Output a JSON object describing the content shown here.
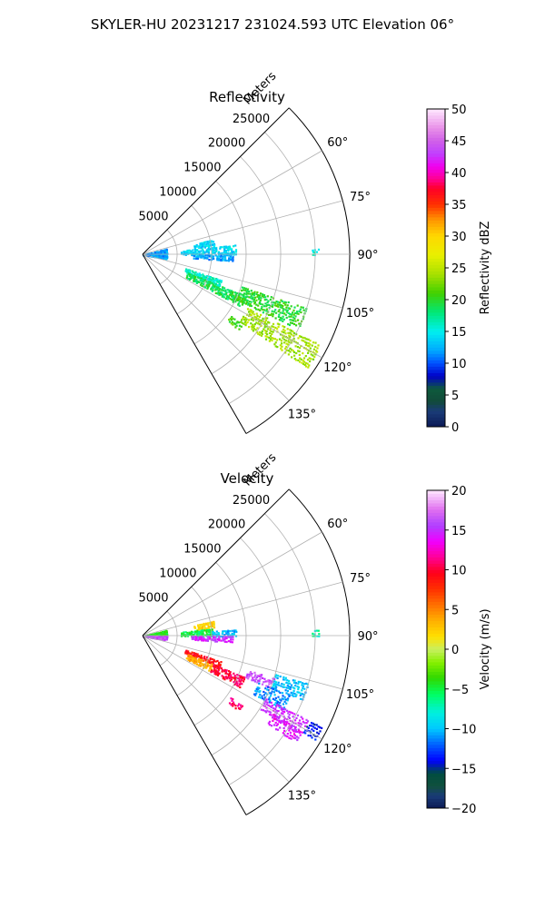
{
  "figure": {
    "suptitle": "SKYLER-HU  20231217  231024.593 UTC Elevation 06°"
  },
  "chart_data": [
    {
      "type": "heatmap",
      "title": "Reflectivity",
      "projection": "polar-sector",
      "theta_range_deg": [
        45,
        150
      ],
      "range_label": "Meters",
      "range_max": 30000,
      "range_ticks": [
        5000,
        10000,
        15000,
        20000,
        25000
      ],
      "range_tick_labels": [
        "5000",
        "10000",
        "15000",
        "20000",
        "25000"
      ],
      "angle_ticks": [
        60,
        75,
        90,
        105,
        120,
        135
      ],
      "angle_tick_labels": [
        "60°",
        "75°",
        "90°",
        "105°",
        "120°",
        "135°"
      ],
      "grid": true,
      "colorbar": {
        "label": "Reflectivity dBZ",
        "min": 0,
        "max": 50,
        "ticks": [
          0,
          5,
          10,
          15,
          20,
          25,
          30,
          35,
          40,
          45,
          50
        ],
        "tick_labels": [
          "0",
          "5",
          "10",
          "15",
          "20",
          "25",
          "30",
          "35",
          "40",
          "45",
          "50"
        ],
        "colormap": "pyart_HomeyerRainbow"
      },
      "echo_regions": [
        {
          "az": [
            78,
            83
          ],
          "r": [
            7500,
            10500
          ],
          "value": 14
        },
        {
          "az": [
            84,
            90
          ],
          "r": [
            5500,
            13500
          ],
          "value": 14
        },
        {
          "az": [
            90,
            94
          ],
          "r": [
            7000,
            13000
          ],
          "value": 12
        },
        {
          "az": [
            76,
            100
          ],
          "r": [
            0,
            3500
          ],
          "value": 12
        },
        {
          "az": [
            108,
            112
          ],
          "r": [
            6500,
            12000
          ],
          "value": 16
        },
        {
          "az": [
            112,
            118
          ],
          "r": [
            7000,
            16000
          ],
          "value": 19
        },
        {
          "az": [
            108,
            116
          ],
          "r": [
            15000,
            25000
          ],
          "value": 20
        },
        {
          "az": [
            117,
            125
          ],
          "r": [
            17000,
            29000
          ],
          "value": 24
        },
        {
          "az": [
            125,
            128
          ],
          "r": [
            15500,
            17500
          ],
          "value": 21
        },
        {
          "az": [
            88,
            90
          ],
          "r": [
            24500,
            25500
          ],
          "value": 16
        }
      ]
    },
    {
      "type": "heatmap",
      "title": "Velocity",
      "projection": "polar-sector",
      "theta_range_deg": [
        45,
        150
      ],
      "range_label": "Meters",
      "range_max": 30000,
      "range_ticks": [
        5000,
        10000,
        15000,
        20000,
        25000
      ],
      "range_tick_labels": [
        "5000",
        "10000",
        "15000",
        "20000",
        "25000"
      ],
      "angle_ticks": [
        60,
        75,
        90,
        105,
        120,
        135
      ],
      "angle_tick_labels": [
        "60°",
        "75°",
        "90°",
        "105°",
        "120°",
        "135°"
      ],
      "grid": true,
      "colorbar": {
        "label": "Velocity (m/s)",
        "min": -20,
        "max": 20,
        "ticks": [
          -20,
          -15,
          -10,
          -5,
          0,
          5,
          10,
          15,
          20
        ],
        "tick_labels": [
          "−20",
          "−15",
          "−10",
          "−5",
          "0",
          "5",
          "10",
          "15",
          "20"
        ],
        "colormap": "pyart_BuDRd18"
      },
      "echo_regions": [
        {
          "az": [
            78,
            83
          ],
          "r": [
            7500,
            10500
          ],
          "value": 2
        },
        {
          "az": [
            84,
            90
          ],
          "r": [
            5500,
            10000
          ],
          "value": -5
        },
        {
          "az": [
            86,
            90
          ],
          "r": [
            10000,
            13500
          ],
          "value": -10
        },
        {
          "az": [
            90,
            94
          ],
          "r": [
            7000,
            13000
          ],
          "value": 15
        },
        {
          "az": [
            76,
            90
          ],
          "r": [
            0,
            3500
          ],
          "value": -4
        },
        {
          "az": [
            90,
            100
          ],
          "r": [
            0,
            3500
          ],
          "value": 16
        },
        {
          "az": [
            108,
            112
          ],
          "r": [
            6500,
            12000
          ],
          "value": 9
        },
        {
          "az": [
            112,
            118
          ],
          "r": [
            7000,
            11000
          ],
          "value": 4
        },
        {
          "az": [
            112,
            118
          ],
          "r": [
            11000,
            16000
          ],
          "value": 10
        },
        {
          "az": [
            108,
            112
          ],
          "r": [
            16000,
            20000
          ],
          "value": 16
        },
        {
          "az": [
            106,
            112
          ],
          "r": [
            20000,
            25000
          ],
          "value": -10
        },
        {
          "az": [
            112,
            118
          ],
          "r": [
            18000,
            23000
          ],
          "value": -11
        },
        {
          "az": [
            117,
            122
          ],
          "r": [
            20000,
            27000
          ],
          "value": 15
        },
        {
          "az": [
            117,
            121
          ],
          "r": [
            27000,
            29000
          ],
          "value": -14
        },
        {
          "az": [
            121,
            125
          ],
          "r": [
            22000,
            27000
          ],
          "value": 14
        },
        {
          "az": [
            125,
            128
          ],
          "r": [
            15500,
            17500
          ],
          "value": 11
        },
        {
          "az": [
            88,
            90
          ],
          "r": [
            24500,
            25500
          ],
          "value": -7
        }
      ]
    }
  ]
}
